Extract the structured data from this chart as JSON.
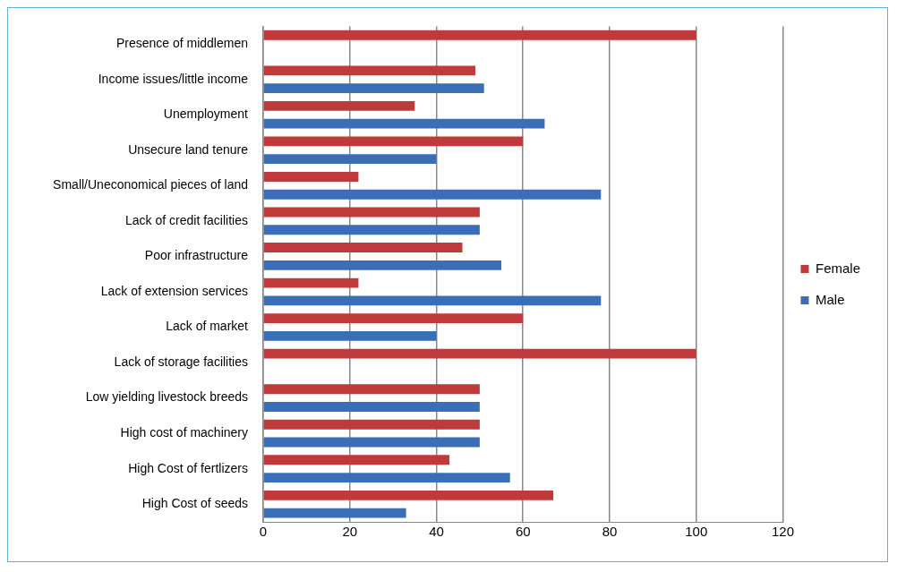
{
  "chart_data": {
    "type": "bar",
    "orientation": "horizontal",
    "categories": [
      "Presence of middlemen",
      "Income issues/little income",
      "Unemployment",
      "Unsecure land tenure",
      "Small/Uneconomical pieces of land",
      "Lack of credit facilities",
      "Poor infrastructure",
      "Lack of extension services",
      "Lack of market",
      "Lack of storage facilities",
      "Low yielding livestock breeds",
      "High cost of machinery",
      "High Cost of fertlizers",
      "High Cost of seeds"
    ],
    "series": [
      {
        "name": "Female",
        "color": "#c0393b",
        "values": [
          100,
          49,
          35,
          60,
          22,
          50,
          46,
          22,
          60,
          100,
          50,
          50,
          43,
          67
        ]
      },
      {
        "name": "Male",
        "color": "#3a6fb8",
        "values": [
          0,
          51,
          65,
          40,
          78,
          50,
          55,
          78,
          40,
          0,
          50,
          50,
          57,
          33
        ]
      }
    ],
    "xlim": [
      0,
      120
    ],
    "xticks": [
      0,
      20,
      40,
      60,
      80,
      100,
      120
    ],
    "grid": "x",
    "legend": "right"
  }
}
